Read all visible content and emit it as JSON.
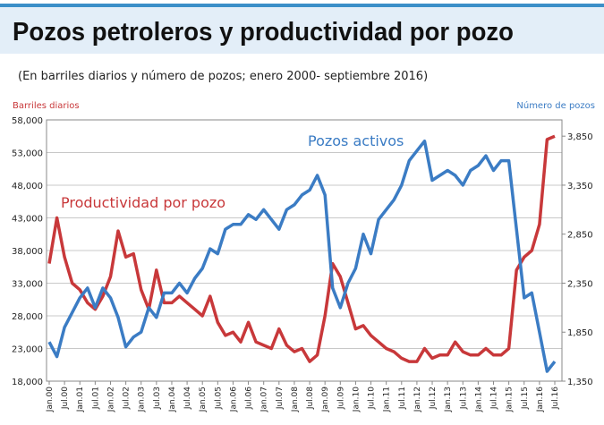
{
  "title": "Pozos petroleros y productividad por pozo",
  "subtitle": "(En barriles diarios y número de pozos; enero 2000- septiembre 2016)",
  "chart_data": {
    "type": "line",
    "ylabel": "Barriles diarios",
    "y2label": "Número de pozos",
    "categories": [
      "Jan.00",
      null,
      "Jul.00",
      null,
      "Jan.01",
      null,
      "Jul.01",
      null,
      "Jan.02",
      null,
      "Jul.02",
      null,
      "Jan.03",
      null,
      "Jul.03",
      null,
      "Jan.04",
      null,
      "Jul.04",
      null,
      "Jan.05",
      null,
      "Jul.05",
      null,
      "Jan.06",
      null,
      "Jul.06",
      null,
      "Jan.07",
      null,
      "Jul.07",
      null,
      "Jan.08",
      null,
      "Jul.08",
      null,
      "Jan.09",
      null,
      "Jul.09",
      null,
      "Jan.10",
      null,
      "Jul.10",
      null,
      "Jan.11",
      null,
      "Jul.11",
      null,
      "Jan.12",
      null,
      "Jul.12",
      null,
      "Jan.13",
      null,
      "Jul.13",
      null,
      "Jan.14",
      null,
      "Jul.14",
      null,
      "Jan.15",
      null,
      "Jul.15",
      null,
      "Jan.16",
      null,
      "Jul.16"
    ],
    "series": [
      {
        "name": "Productividad por pozo",
        "color": "#c8383a",
        "values": [
          36000,
          43000,
          37000,
          33000,
          32000,
          30000,
          29000,
          31000,
          34000,
          41000,
          37000,
          37500,
          32000,
          29000,
          35000,
          30000,
          30000,
          31000,
          30000,
          29000,
          28000,
          31000,
          27000,
          25000,
          25500,
          24000,
          27000,
          24000,
          23500,
          23000,
          26000,
          23500,
          22500,
          23000,
          21000,
          22000,
          28000,
          36000,
          34000,
          30000,
          26000,
          26500,
          25000,
          24000,
          23000,
          22500,
          21500,
          21000,
          21000,
          23000,
          21500,
          22000,
          22000,
          24000,
          22500,
          22000,
          22000,
          23000,
          22000,
          22000,
          23000,
          35000,
          37000,
          38000,
          42000,
          55000,
          55500
        ]
      },
      {
        "name": "Pozos activos",
        "color": "#3b7cc4",
        "axis": "y2",
        "values": [
          1750,
          1600,
          1900,
          2050,
          2200,
          2300,
          2100,
          2300,
          2200,
          2000,
          1700,
          1800,
          1850,
          2100,
          2000,
          2250,
          2250,
          2350,
          2250,
          2400,
          2500,
          2700,
          2650,
          2900,
          2950,
          2950,
          3050,
          3000,
          3100,
          3000,
          2900,
          3100,
          3150,
          3250,
          3300,
          3450,
          3250,
          2300,
          2100,
          2350,
          2500,
          2850,
          2650,
          3000,
          3100,
          3200,
          3350,
          3600,
          3700,
          3800,
          3400,
          3450,
          3500,
          3450,
          3350,
          3500,
          3550,
          3650,
          3500,
          3600,
          3600,
          2900,
          2200,
          2250,
          1850,
          1450,
          1550
        ]
      }
    ],
    "ylim": [
      18000,
      58000
    ],
    "yticks": [
      {
        "value": 18000,
        "label": "18,000"
      },
      {
        "value": 23000,
        "label": "23,000"
      },
      {
        "value": 28000,
        "label": "28,000"
      },
      {
        "value": 33000,
        "label": "33,000"
      },
      {
        "value": 38000,
        "label": "38,000"
      },
      {
        "value": 43000,
        "label": "43,000"
      },
      {
        "value": 48000,
        "label": "48,000"
      },
      {
        "value": 53000,
        "label": "53,000"
      },
      {
        "value": 58000,
        "label": "58,000"
      }
    ],
    "y2lim": [
      1350,
      4016
    ],
    "y2ticks": [
      {
        "value": 1350,
        "label": "1,350"
      },
      {
        "value": 1850,
        "label": "1,850"
      },
      {
        "value": 2350,
        "label": "2,350"
      },
      {
        "value": 2850,
        "label": "2,850"
      },
      {
        "value": 3350,
        "label": "3,350"
      },
      {
        "value": 3850,
        "label": "3,850"
      }
    ],
    "grid": true
  }
}
